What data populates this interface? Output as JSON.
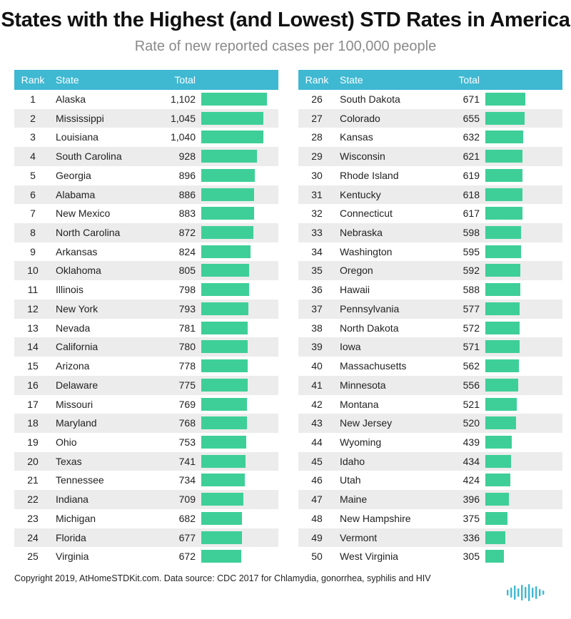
{
  "header": {
    "title": "States with the Highest (and Lowest) STD Rates in America",
    "subtitle": "Rate of new reported cases per 100,000 people"
  },
  "columns": {
    "rank": "Rank",
    "state": "State",
    "total": "Total"
  },
  "footer": {
    "text": "Copyright 2019, AtHomeSTDKit.com. Data source: CDC 2017 for Chlamydia, gonorrhea, syphilis and HIV"
  },
  "colors": {
    "header_bg": "#3fb8d2",
    "bar": "#3ecf98",
    "alt_row": "#ececec",
    "logo": "#3fb8d2"
  },
  "chart_data": {
    "type": "table",
    "columns": [
      "Rank",
      "State",
      "Total"
    ],
    "max_value": 1102,
    "rows": [
      {
        "rank": "1",
        "state": "Alaska",
        "total": "1,102",
        "value": 1102
      },
      {
        "rank": "2",
        "state": "Mississippi",
        "total": "1,045",
        "value": 1045
      },
      {
        "rank": "3",
        "state": "Louisiana",
        "total": "1,040",
        "value": 1040
      },
      {
        "rank": "4",
        "state": "South Carolina",
        "total": "928",
        "value": 928
      },
      {
        "rank": "5",
        "state": "Georgia",
        "total": "896",
        "value": 896
      },
      {
        "rank": "6",
        "state": "Alabama",
        "total": "886",
        "value": 886
      },
      {
        "rank": "7",
        "state": "New Mexico",
        "total": "883",
        "value": 883
      },
      {
        "rank": "8",
        "state": "North Carolina",
        "total": "872",
        "value": 872
      },
      {
        "rank": "9",
        "state": "Arkansas",
        "total": "824",
        "value": 824
      },
      {
        "rank": "10",
        "state": "Oklahoma",
        "total": "805",
        "value": 805
      },
      {
        "rank": "11",
        "state": "Illinois",
        "total": "798",
        "value": 798
      },
      {
        "rank": "12",
        "state": "New York",
        "total": "793",
        "value": 793
      },
      {
        "rank": "13",
        "state": "Nevada",
        "total": "781",
        "value": 781
      },
      {
        "rank": "14",
        "state": "California",
        "total": "780",
        "value": 780
      },
      {
        "rank": "15",
        "state": "Arizona",
        "total": "778",
        "value": 778
      },
      {
        "rank": "16",
        "state": "Delaware",
        "total": "775",
        "value": 775
      },
      {
        "rank": "17",
        "state": "Missouri",
        "total": "769",
        "value": 769
      },
      {
        "rank": "18",
        "state": "Maryland",
        "total": "768",
        "value": 768
      },
      {
        "rank": "19",
        "state": "Ohio",
        "total": "753",
        "value": 753
      },
      {
        "rank": "20",
        "state": "Texas",
        "total": "741",
        "value": 741
      },
      {
        "rank": "21",
        "state": "Tennessee",
        "total": "734",
        "value": 734
      },
      {
        "rank": "22",
        "state": "Indiana",
        "total": "709",
        "value": 709
      },
      {
        "rank": "23",
        "state": "Michigan",
        "total": "682",
        "value": 682
      },
      {
        "rank": "24",
        "state": "Florida",
        "total": "677",
        "value": 677
      },
      {
        "rank": "25",
        "state": "Virginia",
        "total": "672",
        "value": 672
      },
      {
        "rank": "26",
        "state": "South Dakota",
        "total": "671",
        "value": 671
      },
      {
        "rank": "27",
        "state": "Colorado",
        "total": "655",
        "value": 655
      },
      {
        "rank": "28",
        "state": "Kansas",
        "total": "632",
        "value": 632
      },
      {
        "rank": "29",
        "state": "Wisconsin",
        "total": "621",
        "value": 621
      },
      {
        "rank": "30",
        "state": "Rhode Island",
        "total": "619",
        "value": 619
      },
      {
        "rank": "31",
        "state": "Kentucky",
        "total": "618",
        "value": 618
      },
      {
        "rank": "32",
        "state": "Connecticut",
        "total": "617",
        "value": 617
      },
      {
        "rank": "33",
        "state": "Nebraska",
        "total": "598",
        "value": 598
      },
      {
        "rank": "34",
        "state": "Washington",
        "total": "595",
        "value": 595
      },
      {
        "rank": "35",
        "state": "Oregon",
        "total": "592",
        "value": 592
      },
      {
        "rank": "36",
        "state": "Hawaii",
        "total": "588",
        "value": 588
      },
      {
        "rank": "37",
        "state": "Pennsylvania",
        "total": "577",
        "value": 577
      },
      {
        "rank": "38",
        "state": "North Dakota",
        "total": "572",
        "value": 572
      },
      {
        "rank": "39",
        "state": "Iowa",
        "total": "571",
        "value": 571
      },
      {
        "rank": "40",
        "state": "Massachusetts",
        "total": "562",
        "value": 562
      },
      {
        "rank": "41",
        "state": "Minnesota",
        "total": "556",
        "value": 556
      },
      {
        "rank": "42",
        "state": "Montana",
        "total": "521",
        "value": 521
      },
      {
        "rank": "43",
        "state": "New Jersey",
        "total": "520",
        "value": 520
      },
      {
        "rank": "44",
        "state": "Wyoming",
        "total": "439",
        "value": 439
      },
      {
        "rank": "45",
        "state": "Idaho",
        "total": "434",
        "value": 434
      },
      {
        "rank": "46",
        "state": "Utah",
        "total": "424",
        "value": 424
      },
      {
        "rank": "47",
        "state": "Maine",
        "total": "396",
        "value": 396
      },
      {
        "rank": "48",
        "state": "New Hampshire",
        "total": "375",
        "value": 375
      },
      {
        "rank": "49",
        "state": "Vermont",
        "total": "336",
        "value": 336
      },
      {
        "rank": "50",
        "state": "West Virginia",
        "total": "305",
        "value": 305
      }
    ]
  }
}
